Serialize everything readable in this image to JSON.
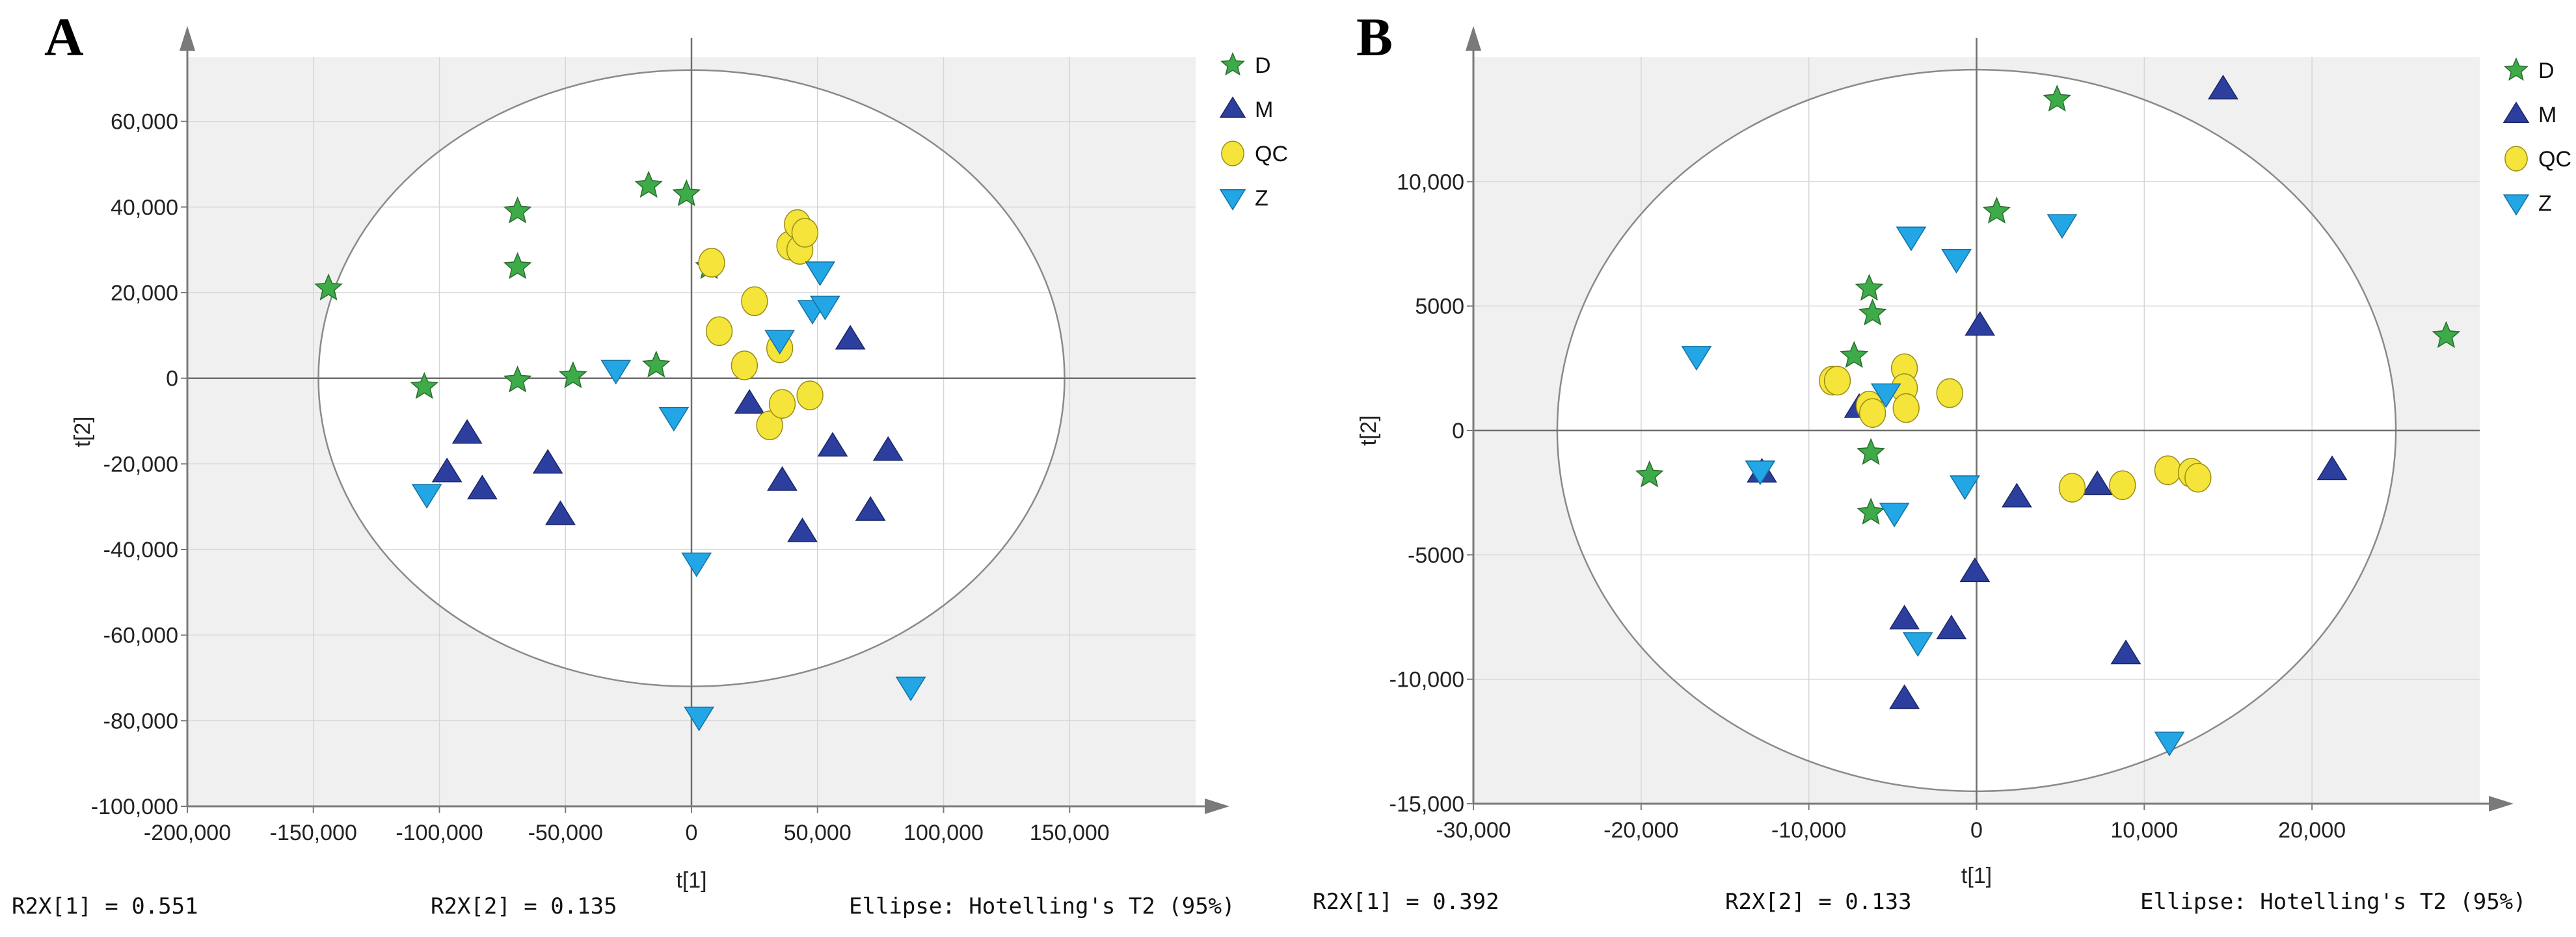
{
  "colors": {
    "D": "#3cab48",
    "M": "#2d3f9e",
    "QC": "#f5e53a",
    "Z": "#22a6e6",
    "plot_background": "#f0f0f0",
    "ellipse_fill": "#ffffff"
  },
  "icons": {
    "D": "star-icon",
    "M": "triangle-up-icon",
    "QC": "circle-icon",
    "Z": "triangle-down-icon"
  },
  "chart_data": [
    {
      "panel": "A",
      "type": "scatter",
      "title": "",
      "xlabel": "t[1]",
      "ylabel": "t[2]",
      "xlim": [
        -200000,
        200000
      ],
      "ylim": [
        -100000,
        75000
      ],
      "x_ticks": [
        -200000,
        -150000,
        -100000,
        -50000,
        0,
        50000,
        100000,
        150000
      ],
      "x_tick_labels": [
        "-200,000",
        "-150,000",
        "-100,000",
        "-50,000",
        "0",
        "50,000",
        "100,000",
        "150,000"
      ],
      "y_ticks": [
        -100000,
        -80000,
        -60000,
        -40000,
        -20000,
        0,
        20000,
        40000,
        60000
      ],
      "y_tick_labels": [
        "-100,000",
        "-80,000",
        "-60,000",
        "-40,000",
        "-20,000",
        "0",
        "20,000",
        "40,000",
        "60,000"
      ],
      "grid": true,
      "ellipse": {
        "rx": 148000,
        "ry": 72000
      },
      "legend": {
        "position": "right-top",
        "entries": [
          "D",
          "M",
          "QC",
          "Z"
        ]
      },
      "footer": [
        "R2X[1] = 0.551",
        "R2X[2] = 0.135",
        "Ellipse: Hotelling's T2 (95%)"
      ],
      "series": [
        {
          "name": "D",
          "points": [
            [
              -144000,
              21000
            ],
            [
              -106000,
              -2000
            ],
            [
              -69000,
              39000
            ],
            [
              -69000,
              26000
            ],
            [
              -69000,
              -500
            ],
            [
              -47000,
              500
            ],
            [
              -17000,
              45000
            ],
            [
              -14000,
              3000
            ],
            [
              -2000,
              43000
            ],
            [
              7000,
              26000
            ]
          ]
        },
        {
          "name": "M",
          "points": [
            [
              -97000,
              -22000
            ],
            [
              -89000,
              -13000
            ],
            [
              -83000,
              -26000
            ],
            [
              -57000,
              -20000
            ],
            [
              -52000,
              -32000
            ],
            [
              23000,
              -6000
            ],
            [
              36000,
              -24000
            ],
            [
              44000,
              -36000
            ],
            [
              56000,
              -16000
            ],
            [
              63000,
              9000
            ],
            [
              71000,
              -31000
            ],
            [
              78000,
              -17000
            ]
          ]
        },
        {
          "name": "QC",
          "points": [
            [
              8000,
              27000
            ],
            [
              11000,
              11000
            ],
            [
              21000,
              3000
            ],
            [
              25000,
              18000
            ],
            [
              31000,
              -11000
            ],
            [
              35000,
              7000
            ],
            [
              36000,
              -6000
            ],
            [
              39000,
              31000
            ],
            [
              42000,
              36000
            ],
            [
              43000,
              30000
            ],
            [
              45000,
              34000
            ],
            [
              47000,
              -4000
            ]
          ]
        },
        {
          "name": "Z",
          "points": [
            [
              -105000,
              -27000
            ],
            [
              -30000,
              2000
            ],
            [
              -7000,
              -9000
            ],
            [
              2000,
              -43000
            ],
            [
              3000,
              -79000
            ],
            [
              35000,
              9000
            ],
            [
              48000,
              16000
            ],
            [
              51000,
              25000
            ],
            [
              53000,
              17000
            ],
            [
              87000,
              -72000
            ]
          ]
        }
      ]
    },
    {
      "panel": "B",
      "type": "scatter",
      "title": "",
      "xlabel": "t[1]",
      "ylabel": "t[2]",
      "xlim": [
        -30000,
        30000
      ],
      "ylim": [
        -15000,
        15000
      ],
      "x_ticks": [
        -30000,
        -20000,
        -10000,
        0,
        10000,
        20000
      ],
      "x_tick_labels": [
        "-30,000",
        "-20,000",
        "-10,000",
        "0",
        "10,000",
        "20,000"
      ],
      "y_ticks": [
        -15000,
        -10000,
        -5000,
        0,
        5000,
        10000
      ],
      "y_tick_labels": [
        "-15,000",
        "-10,000",
        "-5000",
        "0",
        "5000",
        "10,000"
      ],
      "grid": true,
      "ellipse": {
        "rx": 25000,
        "ry": 14500
      },
      "legend": {
        "position": "right-top",
        "entries": [
          "D",
          "M",
          "QC",
          "Z"
        ]
      },
      "footer": [
        "R2X[1] = 0.392",
        "R2X[2] = 0.133",
        "Ellipse: Hotelling's T2 (95%)"
      ],
      "series": [
        {
          "name": "D",
          "points": [
            [
              -19500,
              -1800
            ],
            [
              -7300,
              3000
            ],
            [
              -6400,
              5700
            ],
            [
              -6200,
              4700
            ],
            [
              -6300,
              -900
            ],
            [
              -6300,
              -3300
            ],
            [
              1200,
              8800
            ],
            [
              4800,
              13300
            ],
            [
              28000,
              3800
            ]
          ]
        },
        {
          "name": "M",
          "points": [
            [
              -12800,
              -1700
            ],
            [
              -7000,
              900
            ],
            [
              -4300,
              -7600
            ],
            [
              -4300,
              -10800
            ],
            [
              -1500,
              -8000
            ],
            [
              -100,
              -5700
            ],
            [
              200,
              4200
            ],
            [
              2400,
              -2700
            ],
            [
              7200,
              -2200
            ],
            [
              8900,
              -9000
            ],
            [
              14700,
              13700
            ],
            [
              21200,
              -1600
            ]
          ]
        },
        {
          "name": "QC",
          "points": [
            [
              -8600,
              2000
            ],
            [
              -8300,
              2000
            ],
            [
              -6400,
              1000
            ],
            [
              -6200,
              700
            ],
            [
              -4300,
              2500
            ],
            [
              -4300,
              1700
            ],
            [
              -4200,
              900
            ],
            [
              -1600,
              1500
            ],
            [
              5700,
              -2300
            ],
            [
              8700,
              -2200
            ],
            [
              11400,
              -1600
            ],
            [
              12800,
              -1700
            ],
            [
              13200,
              -1900
            ]
          ]
        },
        {
          "name": "Z",
          "points": [
            [
              -16700,
              3000
            ],
            [
              -12900,
              -1600
            ],
            [
              -5400,
              1500
            ],
            [
              -4900,
              -3300
            ],
            [
              -3900,
              7800
            ],
            [
              -3500,
              -8500
            ],
            [
              -1200,
              6900
            ],
            [
              -700,
              -2200
            ],
            [
              5100,
              8300
            ],
            [
              11500,
              -12500
            ]
          ]
        }
      ]
    }
  ]
}
